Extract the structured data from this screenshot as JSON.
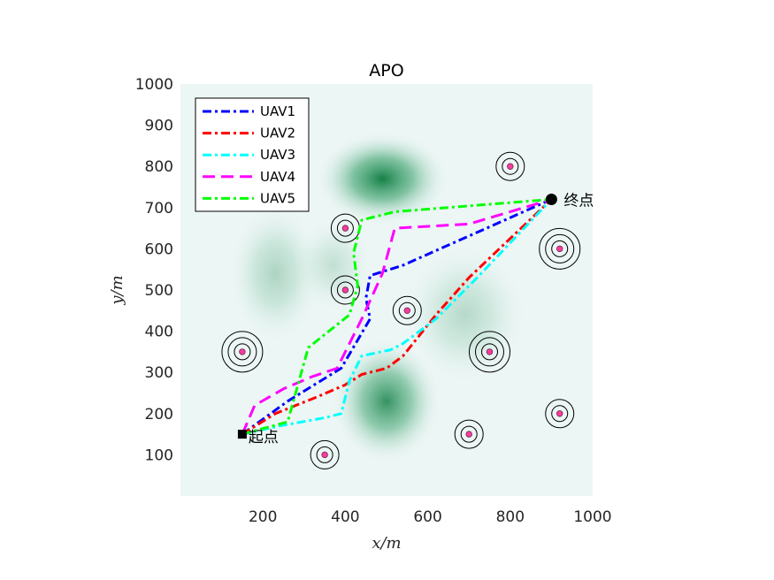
{
  "chart_data": {
    "type": "line",
    "title": "APO",
    "xlabel": "x/m",
    "ylabel": "y/m",
    "xlim": [
      0,
      1000
    ],
    "ylim": [
      0,
      1000
    ],
    "xticks": [
      200,
      400,
      600,
      800,
      1000
    ],
    "yticks": [
      100,
      200,
      300,
      400,
      500,
      600,
      700,
      800,
      900,
      1000
    ],
    "legend_position": "top-left",
    "start": {
      "label": "起点",
      "x": 150,
      "y": 150
    },
    "end": {
      "label": "终点",
      "x": 900,
      "y": 720
    },
    "terrain_peaks": [
      {
        "x": 490,
        "y": 770,
        "strength": 1.0,
        "spread_x": 85,
        "spread_y": 60
      },
      {
        "x": 500,
        "y": 230,
        "strength": 0.85,
        "spread_x": 70,
        "spread_y": 80
      },
      {
        "x": 230,
        "y": 540,
        "strength": 0.3,
        "spread_x": 60,
        "spread_y": 90
      },
      {
        "x": 690,
        "y": 440,
        "strength": 0.25,
        "spread_x": 80,
        "spread_y": 90
      },
      {
        "x": 370,
        "y": 560,
        "strength": 0.2,
        "spread_x": 50,
        "spread_y": 60
      }
    ],
    "obstacles": [
      {
        "x": 150,
        "y": 350,
        "rings": 3
      },
      {
        "x": 750,
        "y": 350,
        "rings": 3
      },
      {
        "x": 920,
        "y": 600,
        "rings": 3
      },
      {
        "x": 920,
        "y": 200,
        "rings": 2
      },
      {
        "x": 700,
        "y": 150,
        "rings": 2
      },
      {
        "x": 350,
        "y": 100,
        "rings": 2
      },
      {
        "x": 550,
        "y": 450,
        "rings": 2
      },
      {
        "x": 400,
        "y": 650,
        "rings": 2
      },
      {
        "x": 400,
        "y": 500,
        "rings": 2
      },
      {
        "x": 800,
        "y": 800,
        "rings": 2
      }
    ],
    "series": [
      {
        "name": "UAV1",
        "color": "#0000ff",
        "dash": "dashdot",
        "x": [
          150,
          260,
          390,
          460,
          450,
          460,
          540,
          900
        ],
        "y": [
          150,
          230,
          310,
          430,
          480,
          535,
          560,
          720
        ]
      },
      {
        "name": "UAV2",
        "color": "#ff0000",
        "dash": "dashdot",
        "x": [
          150,
          230,
          330,
          400,
          440,
          500,
          540,
          620,
          700,
          900
        ],
        "y": [
          150,
          200,
          240,
          270,
          295,
          310,
          340,
          440,
          530,
          720
        ]
      },
      {
        "name": "UAV3",
        "color": "#00ffff",
        "dash": "dashdot",
        "x": [
          150,
          240,
          350,
          390,
          410,
          440,
          510,
          540,
          620,
          720,
          900
        ],
        "y": [
          150,
          170,
          190,
          200,
          280,
          340,
          355,
          370,
          430,
          530,
          720
        ]
      },
      {
        "name": "UAV4",
        "color": "#ff00ff",
        "dash": "dash",
        "x": [
          150,
          180,
          250,
          320,
          380,
          440,
          490,
          520,
          700,
          900
        ],
        "y": [
          150,
          220,
          260,
          290,
          310,
          430,
          540,
          650,
          660,
          720
        ]
      },
      {
        "name": "UAV5",
        "color": "#00ff00",
        "dash": "dashdot",
        "x": [
          150,
          260,
          310,
          410,
          430,
          420,
          440,
          520,
          900
        ],
        "y": [
          150,
          180,
          360,
          440,
          510,
          590,
          670,
          690,
          720
        ]
      }
    ]
  }
}
